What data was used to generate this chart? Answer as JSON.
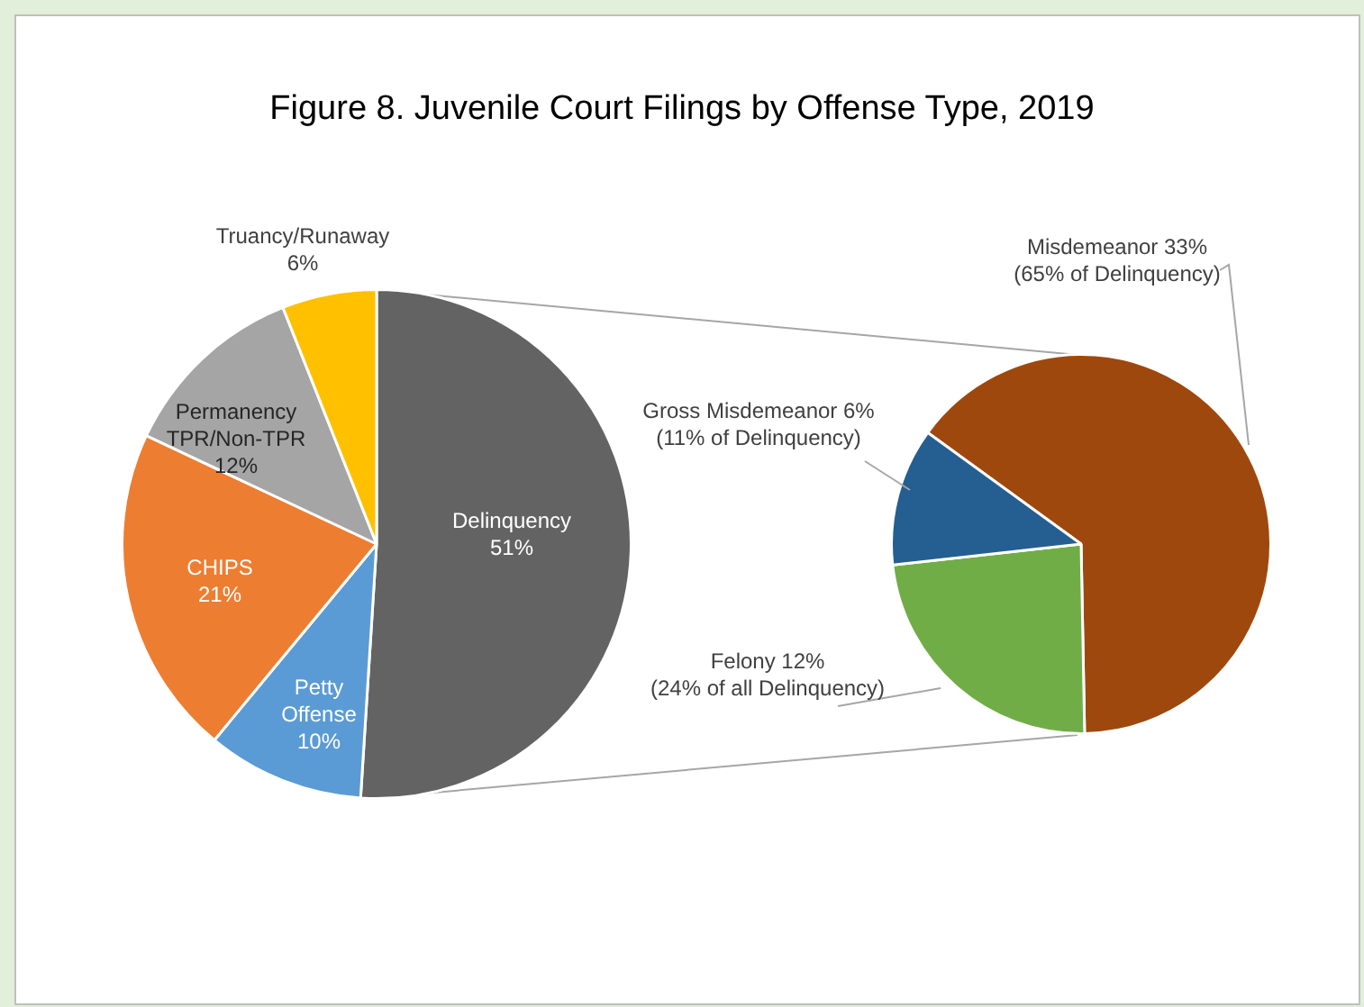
{
  "chart_data": [
    {
      "type": "pie",
      "title": "Figure 8.  Juvenile Court Filings by Offense Type, 2019",
      "categories": [
        "Delinquency",
        "Petty Offense",
        "CHIPS",
        "Permanency TPR/Non-TPR",
        "Truancy/Runaway"
      ],
      "values": [
        51,
        10,
        21,
        12,
        6
      ],
      "colors": [
        "#636363",
        "#5b9bd5",
        "#ed7d31",
        "#a5a5a5",
        "#ffc000"
      ],
      "value_labels": [
        "51%",
        "10%",
        "21%",
        "12%",
        "6%"
      ]
    },
    {
      "type": "pie",
      "categories": [
        "Misdemeanor",
        "Felony",
        "Gross Misdemeanor"
      ],
      "values": [
        33,
        12,
        6
      ],
      "colors": [
        "#9e480e",
        "#70ad47",
        "#255e91"
      ],
      "value_labels": [
        "33%",
        "12%",
        "6%"
      ],
      "annotations": [
        "(65% of Delinquency)",
        "(24% of all Delinquency)",
        "(11% of Delinquency)"
      ]
    }
  ]
}
